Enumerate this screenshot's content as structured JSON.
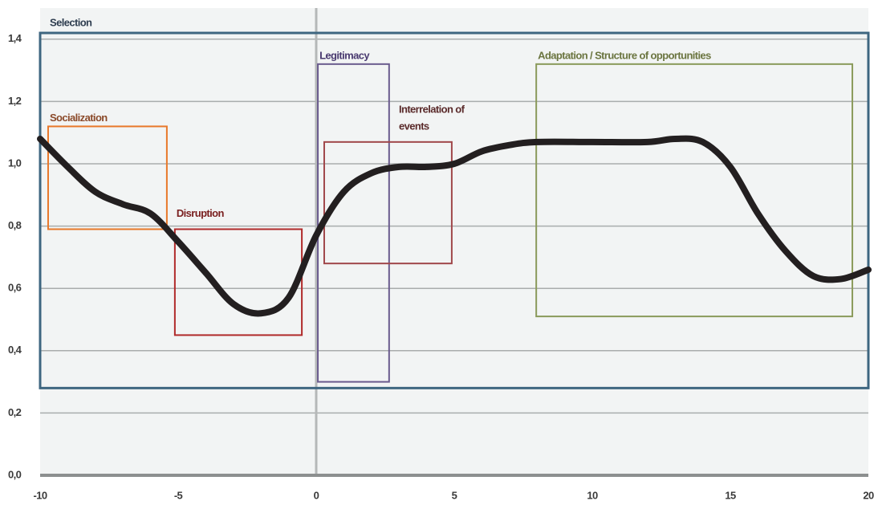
{
  "chart_data": {
    "type": "line",
    "x": [
      -10,
      -9,
      -8,
      -7,
      -6,
      -5,
      -4,
      -3,
      -2,
      -1,
      0,
      1,
      2,
      3,
      4,
      5,
      6,
      7,
      8,
      10,
      12,
      13,
      14,
      15,
      16,
      17,
      18,
      19,
      20
    ],
    "series": [
      {
        "color": "#231f20",
        "values": [
          1.08,
          0.99,
          0.91,
          0.87,
          0.84,
          0.75,
          0.65,
          0.55,
          0.52,
          0.57,
          0.77,
          0.91,
          0.97,
          0.99,
          0.99,
          1.0,
          1.04,
          1.06,
          1.07,
          1.07,
          1.07,
          1.08,
          1.07,
          0.99,
          0.84,
          0.72,
          0.64,
          0.63,
          0.66
        ]
      }
    ],
    "xlim": [
      -10,
      20
    ],
    "xticks": [
      -10,
      -5,
      0,
      5,
      10,
      15,
      20
    ],
    "ylim": [
      0,
      1.5
    ],
    "yticks": [
      {
        "value": 0,
        "label": "0,0"
      },
      {
        "value": 0.2,
        "label": "0,2"
      },
      {
        "value": 0.4,
        "label": "0,4"
      },
      {
        "value": 0.6,
        "label": "0,6"
      },
      {
        "value": 0.8,
        "label": "0,8"
      },
      {
        "value": 1.0,
        "label": "1,0"
      },
      {
        "value": 1.2,
        "label": "1,2"
      },
      {
        "value": 1.4,
        "label": "1,4"
      }
    ],
    "grid": true,
    "regions": [
      {
        "label": "Selection",
        "color": "#3e6680",
        "text_color": "#2f3e50",
        "x": [
          -10,
          20
        ],
        "y": [
          0.28,
          1.42
        ]
      },
      {
        "label": "Socialization",
        "color": "#e8782a",
        "text_color": "#8b4a2a",
        "x": [
          -9.71,
          -5.41
        ],
        "y": [
          0.79,
          1.12
        ]
      },
      {
        "label": "Disruption",
        "color": "#b02a2a",
        "text_color": "#7a2020",
        "x": [
          -5.12,
          -0.52
        ],
        "y": [
          0.45,
          0.79
        ]
      },
      {
        "label": "Legitimacy",
        "color": "#6a5b8e",
        "text_color": "#4a3a70",
        "x": [
          0.06,
          2.64
        ],
        "y": [
          0.3,
          1.32
        ]
      },
      {
        "label": [
          "Interrelation of",
          "events"
        ],
        "color": "#a0474a",
        "text_color": "#5a2a2a",
        "x": [
          0.29,
          4.91
        ],
        "y": [
          0.68,
          1.07
        ]
      },
      {
        "label": "Adaptation / Structure of opportunities",
        "color": "#8a9a5a",
        "text_color": "#6b7540",
        "x": [
          7.97,
          19.42
        ],
        "y": [
          0.51,
          1.32
        ]
      }
    ]
  }
}
